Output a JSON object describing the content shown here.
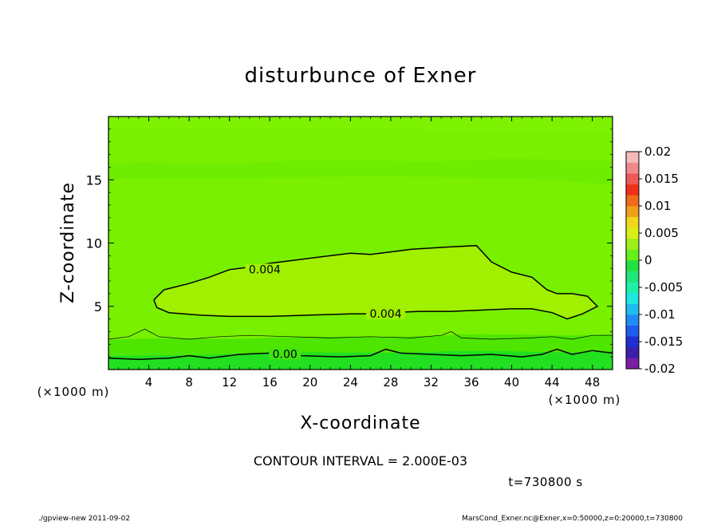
{
  "chart_data": {
    "type": "heatmap",
    "title": "disturbunce of Exner",
    "xlabel": "X-coordinate",
    "ylabel": "Z-coordinate",
    "x_unit_left": "(×1000 m)",
    "x_unit_right": "(×1000 m)",
    "xlim": [
      0,
      50
    ],
    "ylim": [
      0,
      20
    ],
    "x_ticks": [
      4,
      8,
      12,
      16,
      20,
      24,
      28,
      32,
      36,
      40,
      44,
      48
    ],
    "y_ticks": [
      5,
      10,
      15
    ],
    "contour_interval_label": "CONTOUR INTERVAL = 2.000E-03",
    "contour_labels": [
      {
        "text": "0.004",
        "x": 15.5,
        "z": 7.8
      },
      {
        "text": "0.004",
        "x": 27.5,
        "z": 4.3
      },
      {
        "text": "0.00",
        "x": 17.5,
        "z": 1.1
      }
    ],
    "contours": [
      {
        "level": 0.004,
        "points": [
          [
            4.5,
            5.5
          ],
          [
            5.5,
            6.3
          ],
          [
            8,
            6.8
          ],
          [
            10,
            7.3
          ],
          [
            12,
            7.9
          ],
          [
            14,
            8.1
          ],
          [
            16,
            8.4
          ],
          [
            18,
            8.6
          ],
          [
            20,
            8.8
          ],
          [
            22,
            9.0
          ],
          [
            24,
            9.2
          ],
          [
            26,
            9.1
          ],
          [
            28,
            9.3
          ],
          [
            30,
            9.5
          ],
          [
            32,
            9.6
          ],
          [
            34,
            9.7
          ],
          [
            36.5,
            9.8
          ],
          [
            38,
            8.5
          ],
          [
            40,
            7.7
          ],
          [
            42,
            7.3
          ],
          [
            43.5,
            6.3
          ],
          [
            44.5,
            6.0
          ],
          [
            46,
            6.0
          ],
          [
            47.5,
            5.8
          ],
          [
            48.5,
            5.0
          ],
          [
            47,
            4.4
          ],
          [
            45.5,
            4.0
          ],
          [
            44,
            4.5
          ],
          [
            42,
            4.8
          ],
          [
            40,
            4.8
          ],
          [
            37,
            4.7
          ],
          [
            34,
            4.6
          ],
          [
            31,
            4.6
          ],
          [
            28,
            4.5
          ],
          [
            26,
            4.4
          ],
          [
            24,
            4.4
          ],
          [
            20,
            4.3
          ],
          [
            16,
            4.2
          ],
          [
            12,
            4.2
          ],
          [
            9,
            4.3
          ],
          [
            6,
            4.5
          ],
          [
            4.8,
            4.9
          ],
          [
            4.5,
            5.5
          ]
        ]
      },
      {
        "level": 0.002,
        "points": [
          [
            0,
            2.4
          ],
          [
            2,
            2.6
          ],
          [
            3.6,
            3.2
          ],
          [
            5,
            2.6
          ],
          [
            8,
            2.4
          ],
          [
            11,
            2.6
          ],
          [
            14,
            2.7
          ],
          [
            18,
            2.6
          ],
          [
            22,
            2.5
          ],
          [
            26,
            2.6
          ],
          [
            30,
            2.5
          ],
          [
            33,
            2.7
          ],
          [
            34,
            3.0
          ],
          [
            35,
            2.5
          ],
          [
            38,
            2.4
          ],
          [
            42,
            2.5
          ],
          [
            44,
            2.6
          ],
          [
            46,
            2.4
          ],
          [
            48,
            2.7
          ],
          [
            50,
            2.7
          ]
        ]
      },
      {
        "level": 0.0,
        "points": [
          [
            0,
            0.9
          ],
          [
            3,
            0.8
          ],
          [
            6,
            0.9
          ],
          [
            8,
            1.1
          ],
          [
            10,
            0.9
          ],
          [
            13,
            1.2
          ],
          [
            16,
            1.3
          ],
          [
            19,
            1.1
          ],
          [
            23,
            1.0
          ],
          [
            26,
            1.1
          ],
          [
            27.5,
            1.6
          ],
          [
            29,
            1.3
          ],
          [
            32,
            1.2
          ],
          [
            35,
            1.1
          ],
          [
            38,
            1.2
          ],
          [
            41,
            1.0
          ],
          [
            43,
            1.2
          ],
          [
            44.5,
            1.6
          ],
          [
            46,
            1.2
          ],
          [
            48,
            1.5
          ],
          [
            50,
            1.3
          ]
        ]
      }
    ],
    "colorbar": {
      "ticks": [
        "0.02",
        "0.015",
        "0.01",
        "0.005",
        "0",
        "-0.005",
        "-0.01",
        "-0.015",
        "-0.02"
      ],
      "range": [
        -0.02,
        0.02
      ],
      "colors": [
        "#7a1fa3",
        "#3a1fa8",
        "#1f2fd0",
        "#1f5cf0",
        "#1f8cf5",
        "#1fbcf0",
        "#1fe8e0",
        "#1ff0a8",
        "#1ee878",
        "#22e040",
        "#66f018",
        "#9ef018",
        "#d8f018",
        "#f0d818",
        "#f0a018",
        "#f06a18",
        "#f03018",
        "#f05858",
        "#f08a8a",
        "#f5baba"
      ]
    },
    "time_label": "t=730800 s"
  },
  "footer": {
    "left": "./gpview-new  2011-09-02",
    "right": "MarsCond_Exner.nc@Exner,x=0:50000,z=0:20000,t=730800"
  }
}
